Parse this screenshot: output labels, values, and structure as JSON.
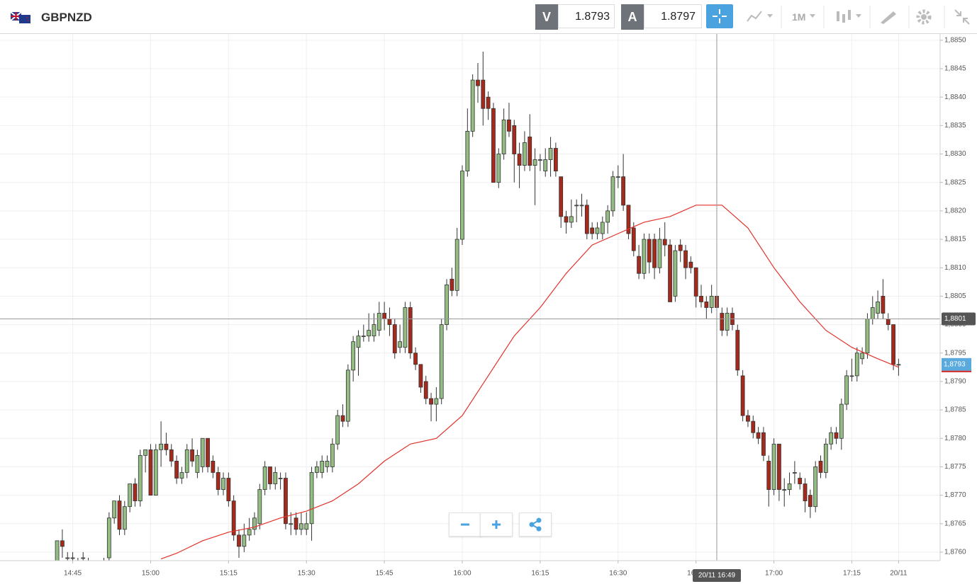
{
  "header": {
    "symbol": "GBPNZD",
    "sell_label": "V",
    "sell_price": "1.8793",
    "buy_label": "A",
    "buy_price": "1.8797",
    "timeframe": "1M"
  },
  "chart_data": {
    "type": "candlestick",
    "x": [
      "14:42",
      "14:43",
      "14:44",
      "14:45",
      "14:46",
      "14:47",
      "14:48",
      "14:49",
      "14:50",
      "14:51",
      "14:52",
      "14:53",
      "14:54",
      "14:55",
      "14:56",
      "14:57",
      "14:58",
      "14:59",
      "15:00",
      "15:01",
      "15:02",
      "15:03",
      "15:04",
      "15:05",
      "15:06",
      "15:07",
      "15:08",
      "15:09",
      "15:10",
      "15:11",
      "15:12",
      "15:13",
      "15:14",
      "15:15",
      "15:16",
      "15:17",
      "15:18",
      "15:19",
      "15:20",
      "15:21",
      "15:22",
      "15:23",
      "15:24",
      "15:25",
      "15:26",
      "15:27",
      "15:28",
      "15:29",
      "15:30",
      "15:31",
      "15:32",
      "15:33",
      "15:34",
      "15:35",
      "15:36",
      "15:37",
      "15:38",
      "15:39",
      "15:40",
      "15:41",
      "15:42",
      "15:43",
      "15:44",
      "15:45",
      "15:46",
      "15:47",
      "15:48",
      "15:49",
      "15:50",
      "15:51",
      "15:52",
      "15:53",
      "15:54",
      "15:55",
      "15:56",
      "15:57",
      "15:58",
      "15:59",
      "16:00",
      "16:01",
      "16:02",
      "16:03",
      "16:04",
      "16:05",
      "16:06",
      "16:07",
      "16:08",
      "16:09",
      "16:10",
      "16:11",
      "16:12",
      "16:13",
      "16:14",
      "16:15",
      "16:16",
      "16:17",
      "16:18",
      "16:19",
      "16:20",
      "16:21",
      "16:22",
      "16:23",
      "16:24",
      "16:25",
      "16:26",
      "16:27",
      "16:28",
      "16:29",
      "16:30",
      "16:31",
      "16:32",
      "16:33",
      "16:34",
      "16:35",
      "16:36",
      "16:37",
      "16:38",
      "16:39",
      "16:40",
      "16:41",
      "16:42",
      "16:43",
      "16:44",
      "16:45",
      "16:46",
      "16:47",
      "16:48",
      "16:49",
      "16:50",
      "16:51",
      "16:52",
      "16:53",
      "16:54",
      "16:55",
      "16:56",
      "16:57",
      "16:58",
      "16:59",
      "17:00",
      "17:01",
      "17:02",
      "17:03",
      "17:04",
      "17:05",
      "17:06",
      "17:07",
      "17:08",
      "17:09",
      "17:10",
      "17:11",
      "17:12",
      "17:13",
      "17:14",
      "17:15",
      "17:16",
      "17:17",
      "17:18",
      "17:19",
      "17:20",
      "17:21",
      "17:22",
      "17:23",
      "17:24"
    ],
    "open": [
      1.8758,
      1.8762,
      1.8759,
      1.8759,
      1.8758,
      1.8759,
      1.8758,
      1.8757,
      1.8757,
      1.8758,
      1.8759,
      1.8766,
      1.8769,
      1.8764,
      1.8768,
      1.8772,
      1.8769,
      1.8777,
      1.8778,
      1.877,
      1.8778,
      1.8779,
      1.8778,
      1.8776,
      1.8773,
      1.8774,
      1.8778,
      1.8774,
      1.8775,
      1.878,
      1.8776,
      1.8774,
      1.8771,
      1.8773,
      1.8769,
      1.8763,
      1.8761,
      1.8763,
      1.8764,
      1.8765,
      1.8771,
      1.8775,
      1.8772,
      1.8773,
      1.8773,
      1.8765,
      1.8766,
      1.8764,
      1.8764,
      1.8765,
      1.8774,
      1.8774,
      1.8775,
      1.8775,
      1.8779,
      1.8784,
      1.8783,
      1.8792,
      1.8796,
      1.8798,
      1.8798,
      1.8798,
      1.8799,
      1.8802,
      1.8801,
      1.88,
      1.8796,
      1.8796,
      1.8803,
      1.8795,
      1.8793,
      1.879,
      1.8787,
      1.8786,
      1.8787,
      1.88,
      1.8808,
      1.8806,
      1.8815,
      1.8827,
      1.8834,
      1.8843,
      1.8843,
      1.884,
      1.8838,
      1.8825,
      1.883,
      1.8836,
      1.8835,
      1.883,
      1.8828,
      1.8833,
      1.8828,
      1.8829,
      1.8827,
      1.8829,
      1.8831,
      1.8826,
      1.8819,
      1.8818,
      1.8821,
      1.8821,
      1.8821,
      1.8817,
      1.8816,
      1.8816,
      1.8818,
      1.882,
      1.8826,
      1.8826,
      1.8821,
      1.8817,
      1.8812,
      1.8809,
      1.8815,
      1.8815,
      1.881,
      1.8815,
      1.8814,
      1.8805,
      1.8814,
      1.8813,
      1.8811,
      1.881,
      1.8805,
      1.8804,
      1.8803,
      1.8805,
      1.8802,
      1.8799,
      1.8802,
      1.8799,
      1.8791,
      1.8784,
      1.8783,
      1.8781,
      1.8781,
      1.8776,
      1.8771,
      1.8779,
      1.8771,
      1.8771,
      1.8774,
      1.8773,
      1.8772,
      1.877,
      1.8768,
      1.8776,
      1.8774,
      1.8779,
      1.8781,
      1.878,
      1.8786,
      1.8791,
      1.8791,
      1.8794,
      1.8795,
      1.8801,
      1.8802,
      1.8805,
      1.8801,
      1.88,
      1.8793
    ],
    "high": [
      1.8762,
      1.8764,
      1.876,
      1.876,
      1.8759,
      1.876,
      1.8759,
      1.8758,
      1.8758,
      1.8759,
      1.8767,
      1.8769,
      1.877,
      1.8769,
      1.8772,
      1.8773,
      1.8778,
      1.8778,
      1.8779,
      1.8779,
      1.8783,
      1.8781,
      1.8779,
      1.8777,
      1.8775,
      1.8779,
      1.878,
      1.8778,
      1.878,
      1.878,
      1.8777,
      1.8775,
      1.8774,
      1.8774,
      1.877,
      1.8764,
      1.8765,
      1.8766,
      1.8767,
      1.8772,
      1.8776,
      1.8775,
      1.8775,
      1.8774,
      1.8774,
      1.8767,
      1.8767,
      1.8767,
      1.8767,
      1.8775,
      1.8776,
      1.8777,
      1.8777,
      1.878,
      1.8785,
      1.8786,
      1.8793,
      1.8798,
      1.8799,
      1.88,
      1.8802,
      1.8802,
      1.8804,
      1.8804,
      1.8803,
      1.8801,
      1.88,
      1.8804,
      1.8804,
      1.8796,
      1.8793,
      1.8791,
      1.8788,
      1.8789,
      1.8801,
      1.8808,
      1.881,
      1.8817,
      1.8828,
      1.8838,
      1.8844,
      1.8846,
      1.8848,
      1.8841,
      1.8839,
      1.8831,
      1.8838,
      1.8839,
      1.8836,
      1.8832,
      1.8834,
      1.8837,
      1.8831,
      1.883,
      1.8831,
      1.8833,
      1.8832,
      1.8826,
      1.882,
      1.8822,
      1.8822,
      1.8823,
      1.8822,
      1.8818,
      1.8818,
      1.8819,
      1.8821,
      1.8827,
      1.8828,
      1.883,
      1.8821,
      1.8818,
      1.8814,
      1.8816,
      1.8816,
      1.8816,
      1.8817,
      1.8818,
      1.8815,
      1.8814,
      1.8815,
      1.8814,
      1.8812,
      1.881,
      1.8807,
      1.8805,
      1.8807,
      1.8806,
      1.8803,
      1.8803,
      1.8803,
      1.88,
      1.8792,
      1.8785,
      1.8784,
      1.8782,
      1.8782,
      1.8777,
      1.878,
      1.8779,
      1.8773,
      1.8774,
      1.8776,
      1.8774,
      1.8773,
      1.8771,
      1.8776,
      1.8777,
      1.878,
      1.8782,
      1.8782,
      1.8787,
      1.8792,
      1.8794,
      1.8796,
      1.8796,
      1.8802,
      1.8805,
      1.8806,
      1.8808,
      1.8802,
      1.88,
      1.8794
    ],
    "low": [
      1.8757,
      1.8759,
      1.8758,
      1.8758,
      1.8757,
      1.8758,
      1.8757,
      1.8756,
      1.8756,
      1.8757,
      1.8758,
      1.8765,
      1.8763,
      1.8763,
      1.8767,
      1.8768,
      1.8768,
      1.8774,
      1.877,
      1.877,
      1.8775,
      1.8777,
      1.8775,
      1.8772,
      1.8772,
      1.8773,
      1.8775,
      1.8773,
      1.8774,
      1.8774,
      1.8773,
      1.877,
      1.877,
      1.8768,
      1.8762,
      1.8759,
      1.876,
      1.8762,
      1.8763,
      1.8764,
      1.877,
      1.8771,
      1.8771,
      1.8771,
      1.8764,
      1.8763,
      1.8763,
      1.8763,
      1.8763,
      1.8762,
      1.8773,
      1.8773,
      1.8774,
      1.8774,
      1.8778,
      1.8782,
      1.8782,
      1.879,
      1.8791,
      1.8797,
      1.8797,
      1.8797,
      1.8798,
      1.8799,
      1.8798,
      1.8794,
      1.8795,
      1.8795,
      1.8794,
      1.8792,
      1.8788,
      1.8786,
      1.8783,
      1.8783,
      1.8786,
      1.8799,
      1.8805,
      1.8805,
      1.8814,
      1.8826,
      1.8833,
      1.8839,
      1.8835,
      1.8836,
      1.8825,
      1.8824,
      1.8829,
      1.8833,
      1.8825,
      1.8824,
      1.8827,
      1.8827,
      1.8821,
      1.8827,
      1.8826,
      1.8826,
      1.8826,
      1.8817,
      1.8816,
      1.8817,
      1.8818,
      1.8819,
      1.8815,
      1.8815,
      1.8815,
      1.8815,
      1.8816,
      1.8819,
      1.8824,
      1.882,
      1.8815,
      1.8812,
      1.8808,
      1.8808,
      1.8809,
      1.8808,
      1.8809,
      1.8812,
      1.8804,
      1.8804,
      1.8811,
      1.8808,
      1.8809,
      1.8803,
      1.8803,
      1.8801,
      1.8802,
      1.8801,
      1.8798,
      1.8798,
      1.8799,
      1.8791,
      1.8783,
      1.8782,
      1.878,
      1.8779,
      1.8776,
      1.8768,
      1.877,
      1.8769,
      1.8768,
      1.877,
      1.8772,
      1.8771,
      1.8767,
      1.8766,
      1.8767,
      1.8773,
      1.8773,
      1.8778,
      1.8779,
      1.8778,
      1.8785,
      1.879,
      1.879,
      1.8793,
      1.8794,
      1.88,
      1.8801,
      1.8801,
      1.8799,
      1.8792,
      1.8791
    ],
    "close": [
      1.8762,
      1.8761,
      1.8759,
      1.8759,
      1.8758,
      1.8759,
      1.8758,
      1.8757,
      1.8757,
      1.8758,
      1.8766,
      1.8769,
      1.8764,
      1.8768,
      1.8772,
      1.8769,
      1.8777,
      1.8778,
      1.877,
      1.8778,
      1.8779,
      1.8778,
      1.8776,
      1.8773,
      1.8774,
      1.8778,
      1.8776,
      1.8777,
      1.878,
      1.8775,
      1.8774,
      1.8771,
      1.8773,
      1.8769,
      1.8763,
      1.8761,
      1.8763,
      1.8764,
      1.8766,
      1.8771,
      1.8775,
      1.8772,
      1.8774,
      1.8773,
      1.8765,
      1.8765,
      1.8764,
      1.8765,
      1.8765,
      1.8774,
      1.8775,
      1.8776,
      1.8776,
      1.8779,
      1.8784,
      1.8783,
      1.8792,
      1.8797,
      1.8798,
      1.8798,
      1.8799,
      1.88,
      1.8802,
      1.8801,
      1.88,
      1.8795,
      1.8797,
      1.8803,
      1.8795,
      1.8793,
      1.8789,
      1.8787,
      1.8786,
      1.8787,
      1.88,
      1.8807,
      1.8806,
      1.8815,
      1.8827,
      1.8834,
      1.8843,
      1.8842,
      1.8838,
      1.8838,
      1.8825,
      1.883,
      1.8836,
      1.8834,
      1.883,
      1.8828,
      1.8832,
      1.8828,
      1.8829,
      1.8829,
      1.8829,
      1.8831,
      1.8827,
      1.8819,
      1.8818,
      1.8819,
      1.8821,
      1.8821,
      1.8816,
      1.8816,
      1.8817,
      1.8818,
      1.882,
      1.8826,
      1.8826,
      1.8821,
      1.8816,
      1.8813,
      1.8809,
      1.8815,
      1.8811,
      1.881,
      1.8815,
      1.8814,
      1.8804,
      1.8813,
      1.8813,
      1.881,
      1.881,
      1.8805,
      1.8804,
      1.8803,
      1.8805,
      1.8803,
      1.8799,
      1.8802,
      1.88,
      1.8792,
      1.8784,
      1.8783,
      1.8781,
      1.878,
      1.8777,
      1.8771,
      1.8779,
      1.8771,
      1.8771,
      1.8772,
      1.8774,
      1.8772,
      1.8769,
      1.8768,
      1.8775,
      1.8774,
      1.8779,
      1.8781,
      1.878,
      1.8786,
      1.8791,
      1.8791,
      1.8795,
      1.8795,
      1.8801,
      1.8803,
      1.8804,
      1.8802,
      1.88,
      1.8793,
      1.8793
    ],
    "up_color": "#93bd82",
    "down_color": "#a52a1c",
    "moving_average": {
      "color": "#e3312b",
      "x": [
        "15:02",
        "15:05",
        "15:10",
        "15:15",
        "15:20",
        "15:25",
        "15:30",
        "15:35",
        "15:40",
        "15:45",
        "15:50",
        "15:55",
        "16:00",
        "16:05",
        "16:10",
        "16:15",
        "16:20",
        "16:25",
        "16:30",
        "16:35",
        "16:40",
        "16:45",
        "16:50",
        "16:55",
        "17:00",
        "17:05",
        "17:10",
        "17:15",
        "17:20",
        "17:24"
      ],
      "values": [
        1.87588,
        1.87598,
        1.8762,
        1.87635,
        1.87644,
        1.8766,
        1.87672,
        1.8769,
        1.8772,
        1.8776,
        1.8779,
        1.878,
        1.8784,
        1.8791,
        1.8798,
        1.8803,
        1.8809,
        1.8814,
        1.8816,
        1.8818,
        1.8819,
        1.8821,
        1.8821,
        1.8817,
        1.881,
        1.8804,
        1.8799,
        1.8796,
        1.8794,
        1.87925
      ]
    },
    "xlim": [
      "14:31",
      "17:32"
    ],
    "xticks": [
      "14:45",
      "15:00",
      "15:15",
      "15:30",
      "15:45",
      "16:00",
      "16:15",
      "16:30",
      "16:45",
      "17:00",
      "17:15",
      {
        "value": "17:24",
        "label": "20/11"
      }
    ],
    "ylim": [
      1.87585,
      1.88511
    ],
    "yticks": [
      {
        "value": 1.876,
        "label": "1,8760"
      },
      {
        "value": 1.8765,
        "label": "1,8765"
      },
      {
        "value": 1.877,
        "label": "1,8770"
      },
      {
        "value": 1.8775,
        "label": "1,8775"
      },
      {
        "value": 1.878,
        "label": "1,8780"
      },
      {
        "value": 1.8785,
        "label": "1,8785"
      },
      {
        "value": 1.879,
        "label": "1,8790"
      },
      {
        "value": 1.8795,
        "label": "1,8795"
      },
      {
        "value": 1.88,
        "label": "1,8800"
      },
      {
        "value": 1.8805,
        "label": "1,8805"
      },
      {
        "value": 1.881,
        "label": "1,8810"
      },
      {
        "value": 1.8815,
        "label": "1,8815"
      },
      {
        "value": 1.882,
        "label": "1,8820"
      },
      {
        "value": 1.8825,
        "label": "1,8825"
      },
      {
        "value": 1.883,
        "label": "1,8830"
      },
      {
        "value": 1.8835,
        "label": "1,8835"
      },
      {
        "value": 1.884,
        "label": "1,8840"
      },
      {
        "value": 1.8845,
        "label": "1,8845"
      },
      {
        "value": 1.885,
        "label": "1,8850"
      }
    ],
    "grid": true,
    "last_price": {
      "value": 1.8793,
      "label": "1,8793",
      "color": "#5aaade"
    },
    "crosshair": {
      "x": "16:49",
      "y": 1.8801,
      "x_label": "20/11 16:49",
      "y_label": "1,8801"
    }
  }
}
